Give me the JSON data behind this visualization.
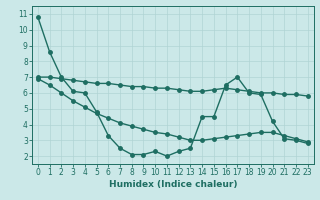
{
  "xlabel": "Humidex (Indice chaleur)",
  "background_color": "#cbe8e8",
  "grid_color": "#b0d4d4",
  "line_color": "#1e6e62",
  "xlim": [
    -0.5,
    23.5
  ],
  "ylim": [
    1.5,
    11.5
  ],
  "xticks": [
    0,
    1,
    2,
    3,
    4,
    5,
    6,
    7,
    8,
    9,
    10,
    11,
    12,
    13,
    14,
    15,
    16,
    17,
    18,
    19,
    20,
    21,
    22,
    23
  ],
  "yticks": [
    2,
    3,
    4,
    5,
    6,
    7,
    8,
    9,
    10,
    11
  ],
  "line1_x": [
    0,
    1,
    2,
    3,
    4,
    5,
    6,
    7,
    8,
    9,
    10,
    11,
    12,
    13,
    14,
    15,
    16,
    17,
    18,
    19,
    20,
    21,
    22,
    23
  ],
  "line1_y": [
    10.8,
    8.6,
    7.0,
    6.1,
    6.0,
    4.8,
    3.3,
    2.5,
    2.1,
    2.1,
    2.3,
    2.0,
    2.3,
    2.5,
    4.5,
    4.5,
    6.5,
    7.0,
    6.0,
    5.9,
    4.2,
    3.1,
    3.0,
    2.8
  ],
  "line2_x": [
    0,
    1,
    2,
    3,
    4,
    5,
    6,
    7,
    8,
    9,
    10,
    11,
    12,
    13,
    14,
    15,
    16,
    17,
    18,
    19,
    20,
    21,
    22,
    23
  ],
  "line2_y": [
    7.0,
    7.0,
    6.9,
    6.8,
    6.7,
    6.6,
    6.6,
    6.5,
    6.4,
    6.4,
    6.3,
    6.3,
    6.2,
    6.1,
    6.1,
    6.2,
    6.3,
    6.2,
    6.1,
    6.0,
    6.0,
    5.9,
    5.9,
    5.8
  ],
  "line3_x": [
    0,
    1,
    2,
    3,
    4,
    5,
    6,
    7,
    8,
    9,
    10,
    11,
    12,
    13,
    14,
    15,
    16,
    17,
    18,
    19,
    20,
    21,
    22,
    23
  ],
  "line3_y": [
    6.9,
    6.5,
    6.0,
    5.5,
    5.1,
    4.7,
    4.4,
    4.1,
    3.9,
    3.7,
    3.5,
    3.4,
    3.2,
    3.0,
    3.0,
    3.1,
    3.2,
    3.3,
    3.4,
    3.5,
    3.5,
    3.3,
    3.1,
    2.9
  ],
  "marker_size": 2.5,
  "line_width": 1.0
}
